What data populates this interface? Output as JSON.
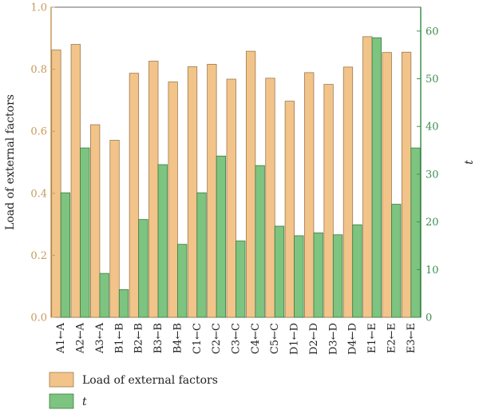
{
  "chart_data": {
    "type": "bar",
    "categories": [
      "A1←A",
      "A2←A",
      "A3←A",
      "B1←B",
      "B2←B",
      "B3←B",
      "B4←B",
      "C1←C",
      "C2←C",
      "C3←C",
      "C4←C",
      "C5←C",
      "D1←D",
      "D2←D",
      "D3←D",
      "D4←D",
      "E1←E",
      "E2←E",
      "E3←E"
    ],
    "series": [
      {
        "name": "Load of external factors",
        "axis": "left",
        "color": "#f2c48a",
        "values": [
          0.862,
          0.88,
          0.621,
          0.571,
          0.787,
          0.826,
          0.759,
          0.808,
          0.816,
          0.768,
          0.858,
          0.771,
          0.697,
          0.789,
          0.751,
          0.807,
          0.905,
          0.854,
          0.855
        ]
      },
      {
        "name": "t",
        "axis": "right",
        "color": "#7cc47f",
        "values": [
          26.1,
          35.5,
          9.2,
          5.8,
          20.5,
          32.0,
          15.3,
          26.1,
          33.8,
          16.0,
          31.8,
          19.1,
          17.1,
          17.7,
          17.3,
          19.4,
          58.6,
          23.7,
          35.5
        ]
      }
    ],
    "ylabel": "Load of external factors",
    "ylabel_right": "t",
    "ylim": [
      0,
      1.0
    ],
    "ylim_right": [
      0,
      65
    ],
    "yticks": [
      "0.0",
      "0.2",
      "0.4",
      "0.6",
      "0.8",
      "1.0"
    ],
    "yticks_right": [
      "0",
      "10",
      "20",
      "30",
      "40",
      "50",
      "60"
    ],
    "grid": false,
    "legend_position": "bottom-left"
  }
}
